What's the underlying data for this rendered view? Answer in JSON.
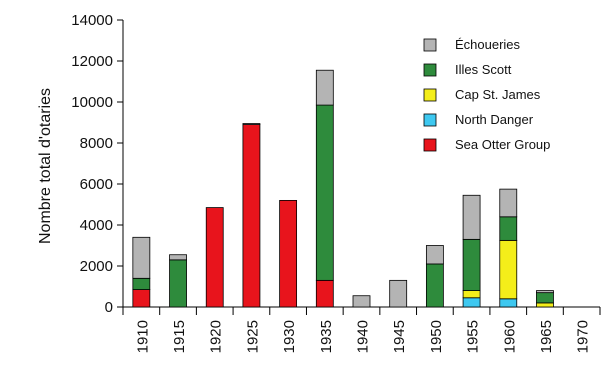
{
  "chart_data": {
    "type": "bar",
    "stacked": true,
    "title": "",
    "xlabel": "",
    "ylabel": "Nombre total d'otaries",
    "ylim": [
      0,
      14000
    ],
    "yticks": [
      0,
      2000,
      4000,
      6000,
      8000,
      10000,
      12000,
      14000
    ],
    "categories": [
      "1910",
      "1915",
      "1920",
      "1925",
      "1930",
      "1935",
      "1940",
      "1945",
      "1950",
      "1955",
      "1960",
      "1965",
      "1970"
    ],
    "legend_position": "top-right",
    "grid": false,
    "series": [
      {
        "name": "Sea Otter Group",
        "color": "#e8141c",
        "values": [
          850,
          0,
          4850,
          8900,
          5200,
          1300,
          0,
          0,
          0,
          0,
          0,
          0,
          0
        ]
      },
      {
        "name": "North Danger",
        "color": "#3ec8f0",
        "values": [
          0,
          0,
          0,
          0,
          0,
          0,
          0,
          0,
          0,
          450,
          400,
          0,
          0
        ]
      },
      {
        "name": "Cap St. James",
        "color": "#f4ee1a",
        "values": [
          0,
          0,
          0,
          0,
          0,
          0,
          0,
          0,
          0,
          350,
          2850,
          200,
          0
        ]
      },
      {
        "name": "Illes Scott",
        "color": "#2e8b3c",
        "values": [
          550,
          2300,
          0,
          0,
          0,
          8550,
          0,
          0,
          2100,
          2500,
          1150,
          500,
          0
        ]
      },
      {
        "name": "Échoueries",
        "color": "#b4b4b4",
        "values": [
          2000,
          250,
          0,
          50,
          0,
          1700,
          550,
          1300,
          900,
          2150,
          1350,
          100,
          0
        ]
      }
    ],
    "legend_order": [
      "Échoueries",
      "Illes Scott",
      "Cap St. James",
      "North Danger",
      "Sea Otter Group"
    ]
  }
}
